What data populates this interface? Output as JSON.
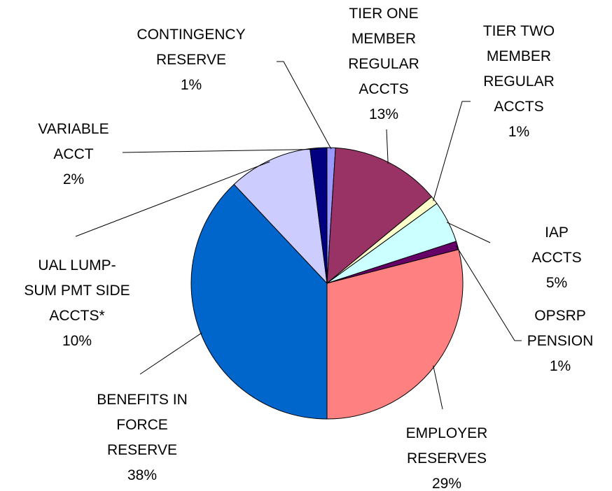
{
  "chart_data": {
    "type": "pie",
    "categories": [
      "CONTINGENCY\nRESERVE",
      "TIER ONE\nMEMBER\nREGULAR\nACCTS",
      "TIER TWO\nMEMBER\nREGULAR\nACCTS",
      "IAP ACCTS",
      "OPSRP\nPENSION",
      "EMPLOYER\nRESERVES",
      "BENEFITS IN\nFORCE\nRESERVE",
      "UAL LUMP-\nSUM PMT SIDE\nACCTS*",
      "VARIABLE\nACCT"
    ],
    "values": [
      1,
      13,
      1,
      5,
      1,
      29,
      38,
      10,
      2
    ],
    "value_labels": [
      "1%",
      "13%",
      "1%",
      "5%",
      "1%",
      "29%",
      "38%",
      "10%",
      "2%"
    ],
    "colors": [
      "#9999ff",
      "#993366",
      "#ffffcc",
      "#ccffff",
      "#660066",
      "#ff8080",
      "#0066cc",
      "#ccccff",
      "#000080"
    ]
  }
}
